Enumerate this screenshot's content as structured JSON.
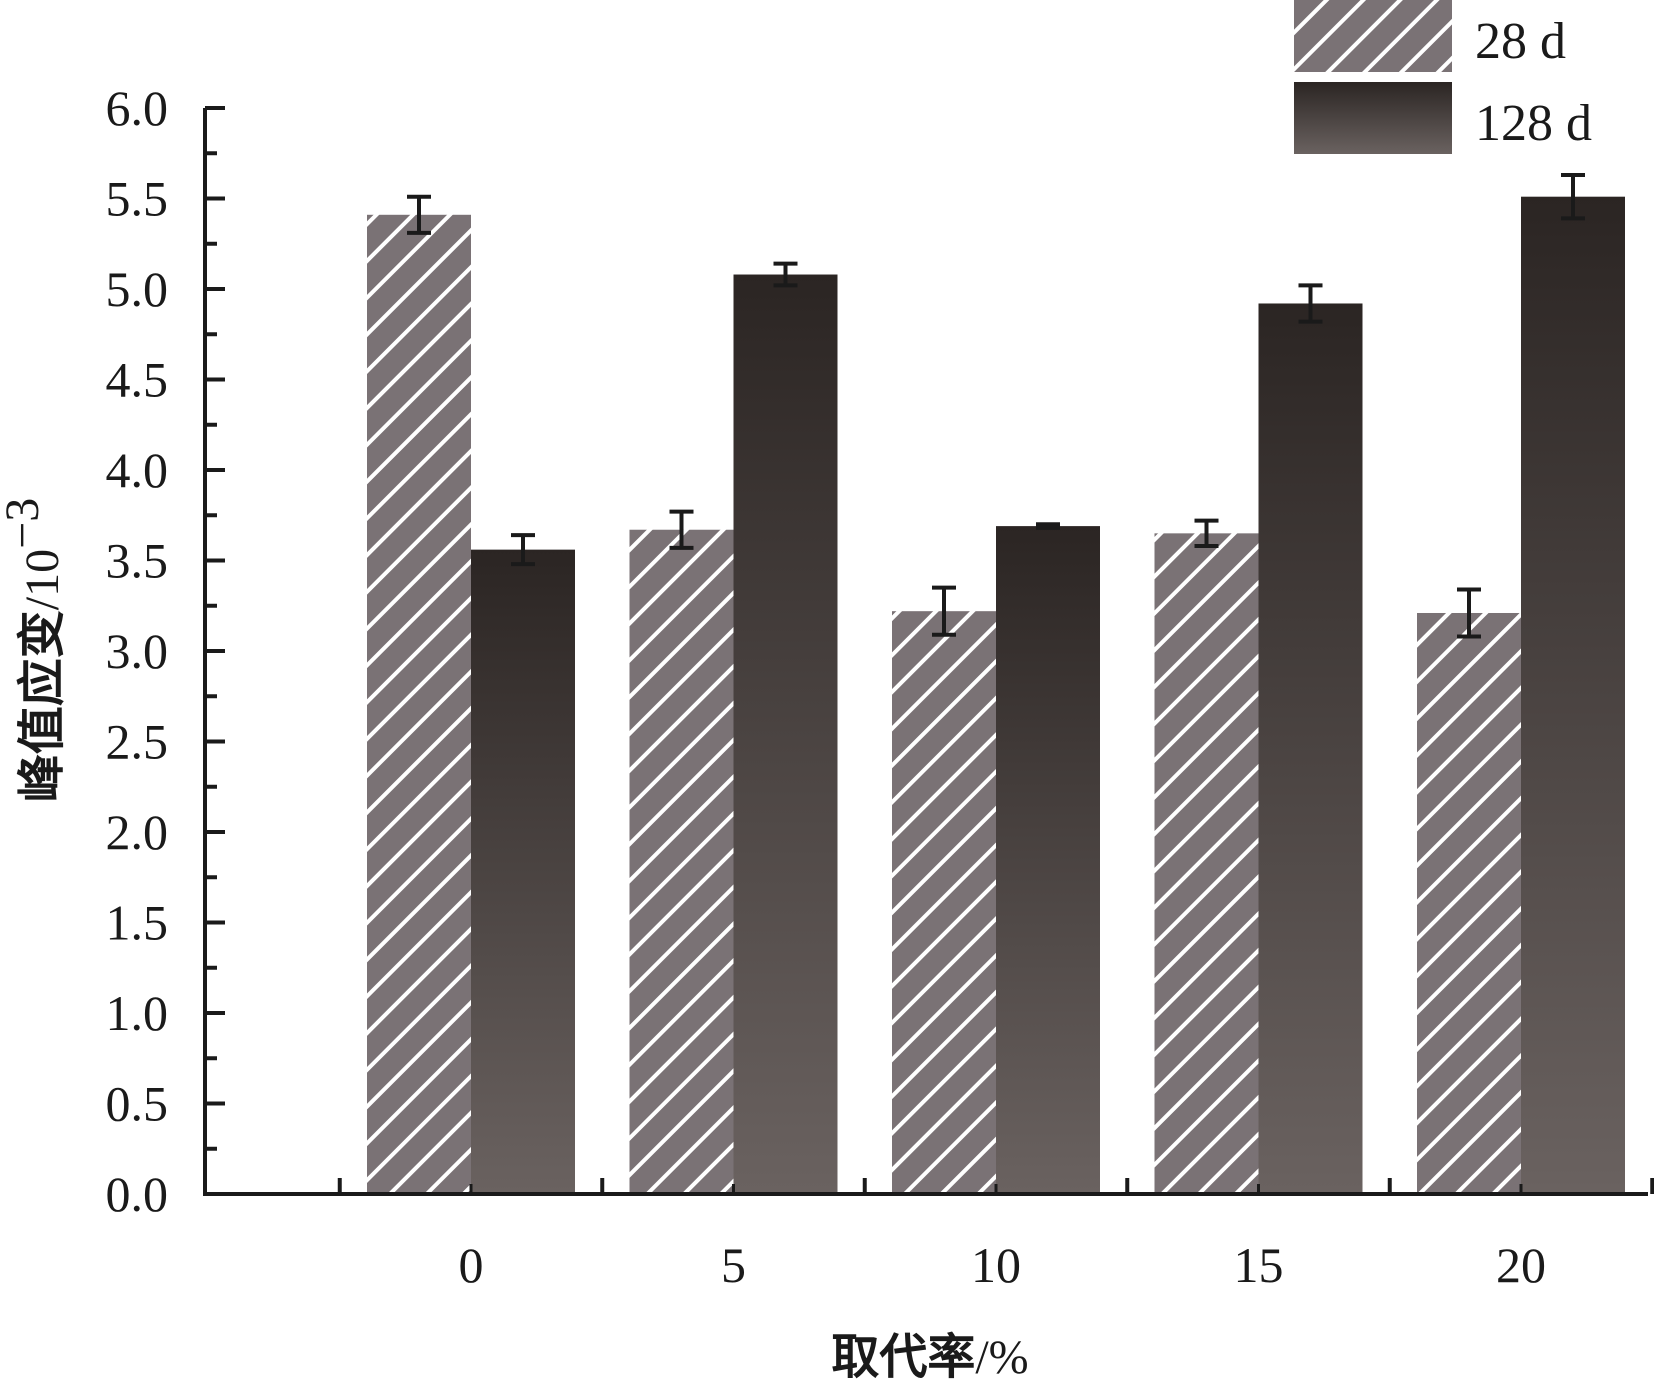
{
  "chart_data": {
    "type": "bar",
    "categories": [
      "0",
      "5",
      "10",
      "15",
      "20"
    ],
    "series": [
      {
        "name": "28 d",
        "values": [
          5.41,
          3.67,
          3.22,
          3.65,
          3.21
        ],
        "errors": [
          0.1,
          0.1,
          0.13,
          0.07,
          0.13
        ],
        "color": "#7a7275",
        "pattern": "diagonal-hatch"
      },
      {
        "name": "128 d",
        "values": [
          3.56,
          5.08,
          3.69,
          4.92,
          5.51
        ],
        "errors": [
          0.08,
          0.06,
          0.01,
          0.1,
          0.12
        ],
        "color": "#3a3433",
        "pattern": "gradient"
      }
    ],
    "y_ticks": [
      "0.0",
      "0.5",
      "1.0",
      "1.5",
      "2.0",
      "2.5",
      "3.0",
      "3.5",
      "4.0",
      "4.5",
      "5.0",
      "5.5",
      "6.0"
    ],
    "ylim": [
      0,
      6.0
    ],
    "xlabel": "取代率/%",
    "xlabel_cn": "取代率",
    "xlabel_unit": "/%",
    "ylabel_cn": "峰值应变",
    "ylabel_unit": "/10",
    "ylabel_exp": "−3",
    "legend_position": "top-right",
    "grid": false
  }
}
